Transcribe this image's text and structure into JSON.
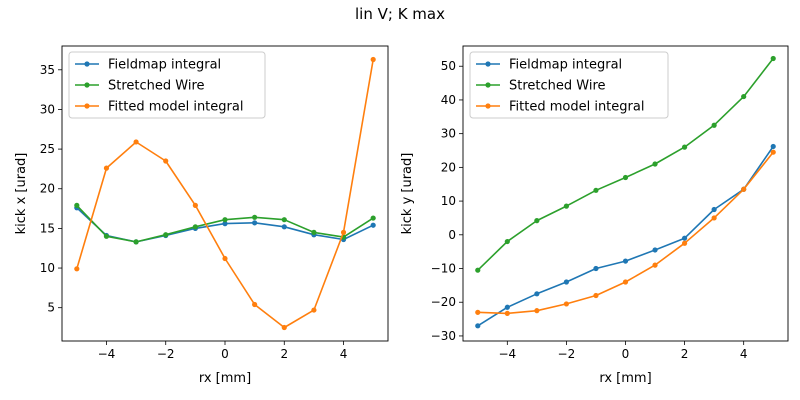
{
  "figure": {
    "suptitle": "lin V; K max"
  },
  "colors": {
    "Fieldmap integral": "#1f77b4",
    "Stretched Wire": "#2ca02c",
    "Fitted model integral": "#ff7f0e"
  },
  "chart_data": [
    {
      "type": "line",
      "xlabel": "rx [mm]",
      "ylabel": "kick x [urad]",
      "xlim": [
        -5.5,
        5.5
      ],
      "ylim": [
        0.8,
        38.0
      ],
      "xticks": [
        -4,
        -2,
        0,
        2,
        4
      ],
      "yticks": [
        5,
        10,
        15,
        20,
        25,
        30,
        35
      ],
      "grid": false,
      "legend": "top-left",
      "x": [
        -5,
        -4,
        -3,
        -2,
        -1,
        0,
        1,
        2,
        3,
        4,
        5
      ],
      "series": [
        {
          "name": "Fieldmap integral",
          "values": [
            17.6,
            14.1,
            13.3,
            14.1,
            15.0,
            15.6,
            15.7,
            15.2,
            14.2,
            13.6,
            15.4
          ]
        },
        {
          "name": "Stretched Wire",
          "values": [
            17.9,
            14.0,
            13.3,
            14.2,
            15.2,
            16.1,
            16.4,
            16.1,
            14.5,
            13.9,
            16.3
          ]
        },
        {
          "name": "Fitted model integral",
          "values": [
            9.9,
            22.6,
            25.9,
            23.5,
            17.9,
            11.2,
            5.4,
            2.5,
            4.7,
            14.5,
            36.3
          ]
        }
      ]
    },
    {
      "type": "line",
      "xlabel": "rx [mm]",
      "ylabel": "kick y [urad]",
      "xlim": [
        -5.5,
        5.5
      ],
      "ylim": [
        -31.5,
        56.0
      ],
      "xticks": [
        -4,
        -2,
        0,
        2,
        4
      ],
      "yticks": [
        -30,
        -20,
        -10,
        0,
        10,
        20,
        30,
        40,
        50
      ],
      "grid": false,
      "legend": "top-left",
      "x": [
        -5,
        -4,
        -3,
        -2,
        -1,
        0,
        1,
        2,
        3,
        4,
        5
      ],
      "series": [
        {
          "name": "Fieldmap integral",
          "values": [
            -27.0,
            -21.5,
            -17.5,
            -14.0,
            -10.0,
            -7.8,
            -4.5,
            -1.0,
            7.5,
            13.5,
            26.2
          ]
        },
        {
          "name": "Stretched Wire",
          "values": [
            -10.5,
            -2.0,
            4.2,
            8.5,
            13.2,
            17.0,
            21.0,
            26.0,
            32.5,
            41.0,
            52.3
          ]
        },
        {
          "name": "Fitted model integral",
          "values": [
            -23.0,
            -23.3,
            -22.5,
            -20.5,
            -18.0,
            -14.0,
            -9.0,
            -2.5,
            5.0,
            13.5,
            24.5
          ]
        }
      ]
    }
  ]
}
